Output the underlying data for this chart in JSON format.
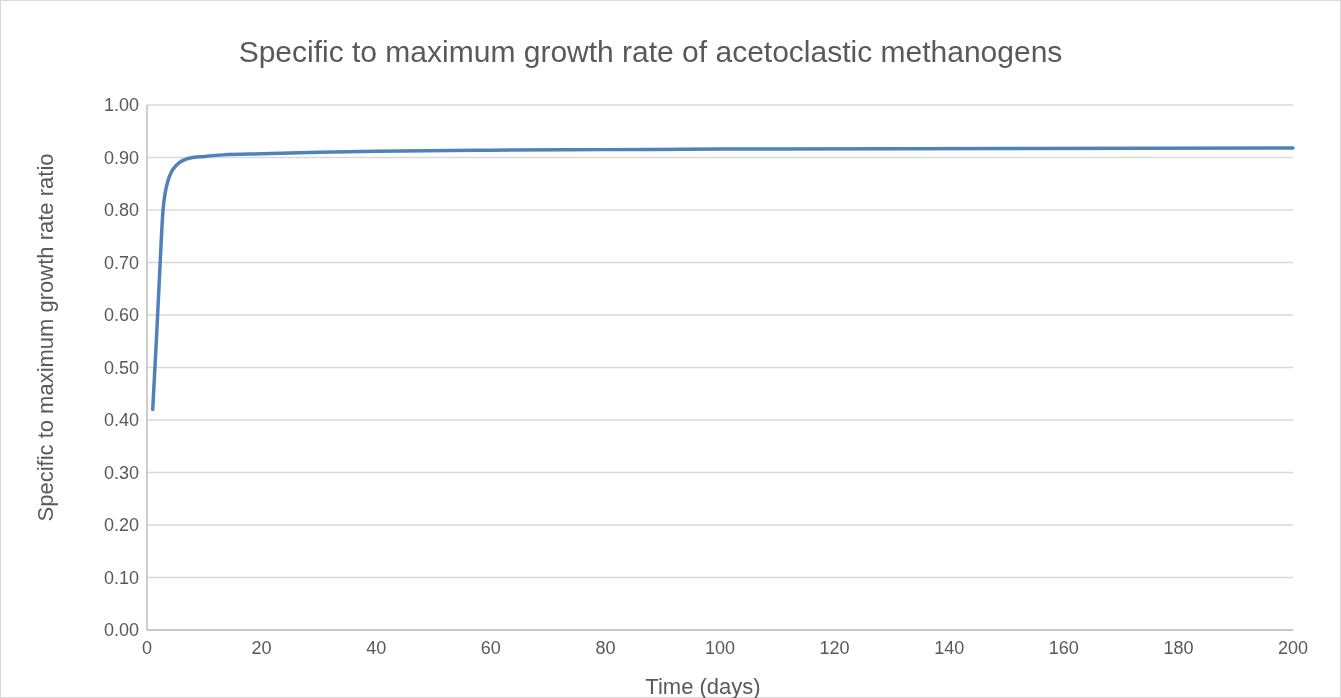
{
  "chart_data": {
    "type": "line",
    "title": "Specific to maximum growth rate of acetoclastic methanogens",
    "xlabel": "Time (days)",
    "ylabel": "Specific to maximum growth rate ratio",
    "series": [
      {
        "color": "#4f81bd",
        "x": [
          1,
          1.7,
          2.3,
          2.8,
          3.7,
          5.2,
          7.5,
          10,
          13.3,
          20,
          30,
          40,
          60,
          80,
          100,
          150,
          200
        ],
        "values": [
          0.42,
          0.566,
          0.7,
          0.8,
          0.857,
          0.886,
          0.899,
          0.902,
          0.905,
          0.907,
          0.91,
          0.912,
          0.914,
          0.915,
          0.916,
          0.917,
          0.918
        ]
      }
    ],
    "xlim": [
      0,
      200
    ],
    "xticks": [
      0,
      20,
      40,
      60,
      80,
      100,
      120,
      140,
      160,
      180,
      200
    ],
    "ylim": [
      0,
      1
    ],
    "yticks": [
      {
        "value": 0,
        "label": "0.00"
      },
      {
        "value": 0.1,
        "label": "0.10"
      },
      {
        "value": 0.2,
        "label": "0.20"
      },
      {
        "value": 0.3,
        "label": "0.30"
      },
      {
        "value": 0.4,
        "label": "0.40"
      },
      {
        "value": 0.5,
        "label": "0.50"
      },
      {
        "value": 0.6,
        "label": "0.60"
      },
      {
        "value": 0.7,
        "label": "0.70"
      },
      {
        "value": 0.8,
        "label": "0.80"
      },
      {
        "value": 0.9,
        "label": "0.90"
      },
      {
        "value": 1,
        "label": "1.00"
      }
    ],
    "grid": "y",
    "marker": "none",
    "line_style": "solid"
  }
}
